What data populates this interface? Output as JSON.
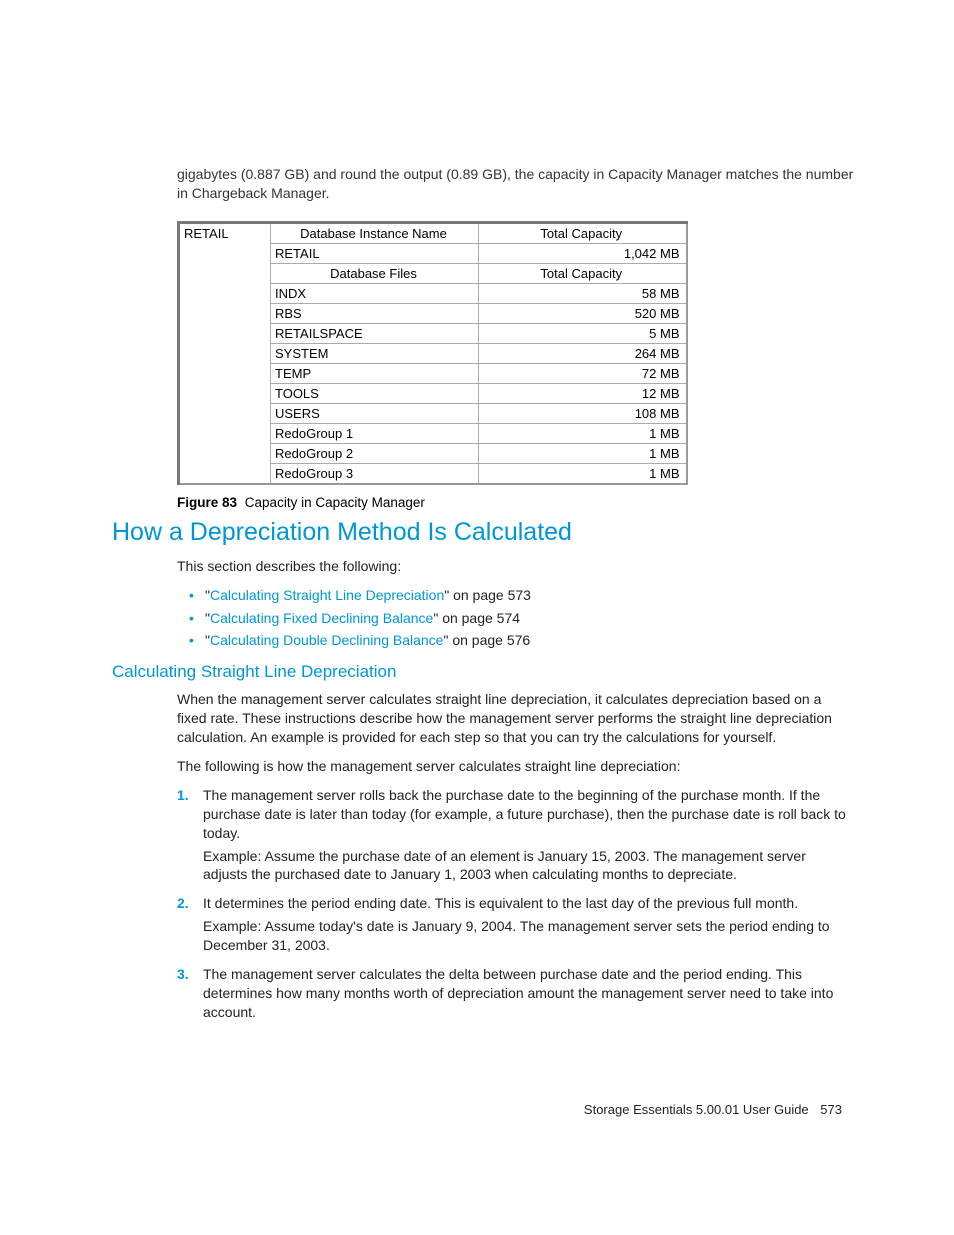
{
  "colors": {
    "accent": "#0096d6",
    "text": "#222222",
    "border": "#aaaaaa",
    "background": "#ffffff"
  },
  "intro": "gigabytes (0.887 GB) and round the output (0.89 GB), the capacity in Capacity Manager matches the number in Chargeback Manager.",
  "figure": {
    "sidebar_label": "RETAIL",
    "instance_header_name": "Database Instance Name",
    "instance_header_cap": "Total Capacity",
    "instance_row_name": "RETAIL",
    "instance_row_cap": "1,042 MB",
    "files_header_name": "Database Files",
    "files_header_cap": "Total Capacity",
    "rows": [
      {
        "name": "INDX",
        "cap": "58 MB"
      },
      {
        "name": "RBS",
        "cap": "520 MB"
      },
      {
        "name": "RETAILSPACE",
        "cap": "5 MB"
      },
      {
        "name": "SYSTEM",
        "cap": "264 MB"
      },
      {
        "name": "TEMP",
        "cap": "72 MB"
      },
      {
        "name": "TOOLS",
        "cap": "12 MB"
      },
      {
        "name": "USERS",
        "cap": "108 MB"
      },
      {
        "name": "RedoGroup 1",
        "cap": "1 MB"
      },
      {
        "name": "RedoGroup 2",
        "cap": "1 MB"
      },
      {
        "name": "RedoGroup 3",
        "cap": "1 MB"
      }
    ],
    "caption_label": "Figure 83",
    "caption_text": "Capacity in Capacity Manager"
  },
  "heading1": "How a Depreciation Method Is Calculated",
  "lead": "This section describes the following:",
  "links": [
    {
      "pre": "\"",
      "text": "Calculating Straight Line Depreciation",
      "post": "\" on page 573"
    },
    {
      "pre": "\"",
      "text": "Calculating Fixed Declining Balance",
      "post": "\" on page 574"
    },
    {
      "pre": "\"",
      "text": "Calculating Double Declining Balance",
      "post": "\" on page 576"
    }
  ],
  "heading2": "Calculating Straight Line Depreciation",
  "para1": "When the management server calculates straight line depreciation, it calculates depreciation based on a fixed rate. These instructions describe how the management server performs the straight line depreciation calculation. An example is provided for each step so that you can try the calculations for yourself.",
  "para2": "The following is how the management server calculates straight line depreciation:",
  "steps": [
    {
      "num": "1.",
      "text": "The management server rolls back the purchase date to the beginning of the purchase month. If the purchase date is later than today (for example, a future purchase), then the purchase date is roll back to today.",
      "example": "Example: Assume the purchase date of an element is January 15, 2003. The management server adjusts the purchased date to January 1, 2003 when calculating months to depreciate."
    },
    {
      "num": "2.",
      "text": "It determines the period ending date. This is equivalent to the last day of the previous full month.",
      "example": "Example: Assume today's date is January 9, 2004. The management server sets the period ending to December 31, 2003."
    },
    {
      "num": "3.",
      "text": "The management server calculates the delta between purchase date and the period ending. This determines how many months worth of depreciation amount the management server need to take into account.",
      "example": ""
    }
  ],
  "footer": {
    "doc": "Storage Essentials 5.00.01 User Guide",
    "page": "573"
  }
}
